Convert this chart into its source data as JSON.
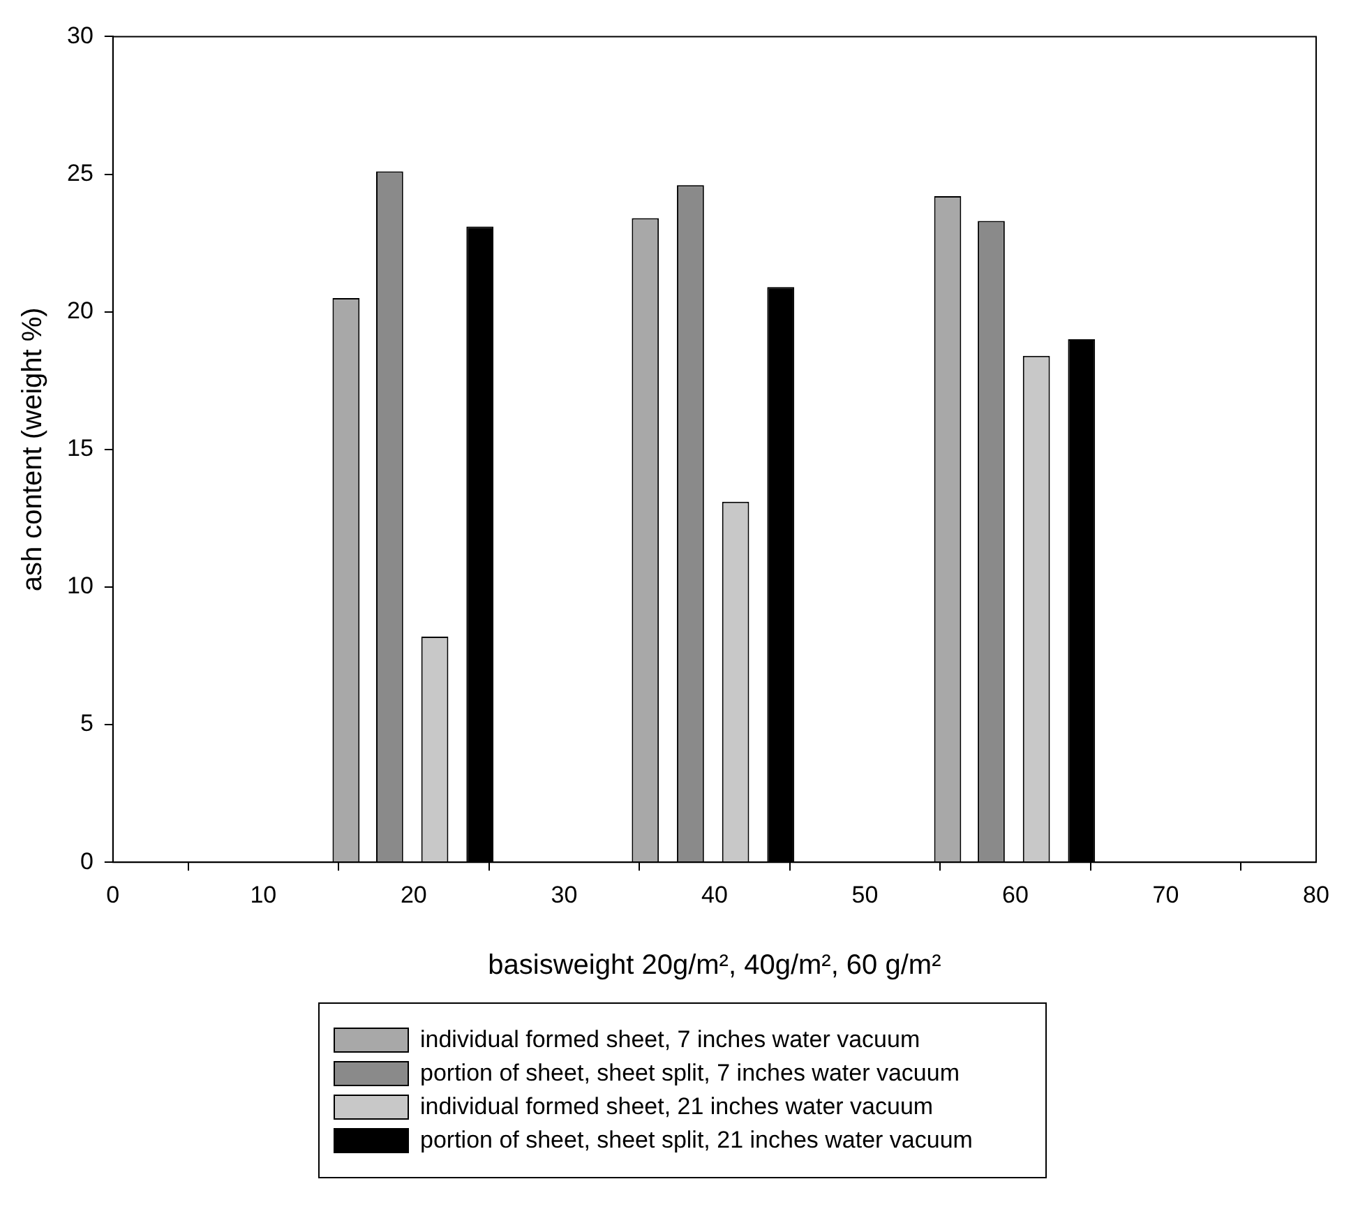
{
  "chart_data": {
    "type": "bar",
    "xlabel": "basisweight 20g/m², 40g/m², 60 g/m²",
    "ylabel": "ash content (weight %)",
    "xlim": [
      0,
      80
    ],
    "xticks": [
      0,
      10,
      20,
      30,
      40,
      50,
      60,
      70,
      80
    ],
    "ylim": [
      0,
      30
    ],
    "yticks": [
      0,
      5,
      10,
      15,
      20,
      25,
      30
    ],
    "legend": "bottom",
    "series": [
      {
        "name": "individual formed sheet, 7 inches water vacuum",
        "color": "#a8a8a8",
        "x": [
          15.5,
          35.4,
          55.5
        ],
        "values": [
          20.5,
          23.4,
          24.2
        ]
      },
      {
        "name": "portion of sheet, sheet split, 7 inches water vacuum",
        "color": "#8a8a8a",
        "x": [
          18.4,
          38.4,
          58.4
        ],
        "values": [
          25.1,
          24.6,
          23.3
        ]
      },
      {
        "name": "individual formed sheet, 21 inches water vacuum",
        "color": "#c8c8c8",
        "x": [
          21.4,
          41.4,
          61.4
        ],
        "values": [
          8.2,
          13.1,
          18.4
        ]
      },
      {
        "name": "portion of sheet, sheet split, 21 inches water vacuum",
        "color": "#000000",
        "x": [
          24.4,
          44.4,
          64.4
        ],
        "values": [
          23.1,
          20.9,
          19.0
        ]
      }
    ]
  }
}
